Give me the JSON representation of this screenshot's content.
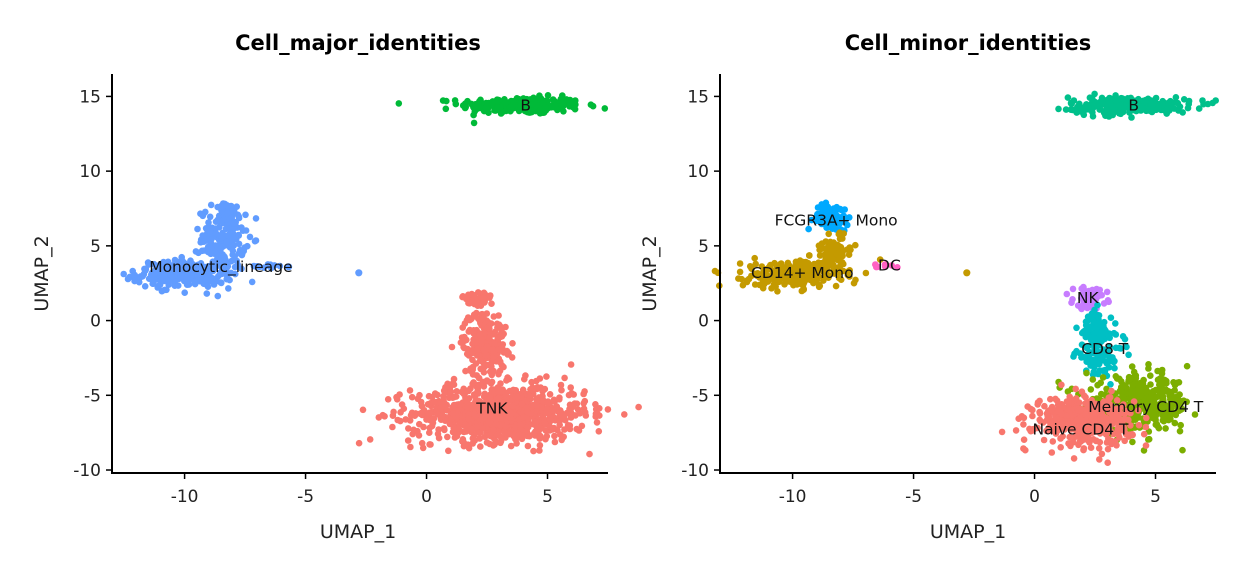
{
  "chart_data": [
    {
      "type": "scatter",
      "title": "Cell_major_identities",
      "xlabel": "UMAP_1",
      "ylabel": "UMAP_2",
      "xlim": [
        -13,
        7.5
      ],
      "ylim": [
        -10.2,
        16.5
      ],
      "xticks": [
        -10,
        -5,
        0,
        5
      ],
      "yticks": [
        -10,
        -5,
        0,
        5,
        10,
        15
      ],
      "legend": "none",
      "grid": false,
      "clusters": [
        {
          "label": "B",
          "color": "#00BA38",
          "label_x": 4.1,
          "label_y": 14.4,
          "blobs": [
            {
              "cx": 3.9,
              "cy": 14.4,
              "sx": 1.25,
              "sy": 0.28,
              "n": 260
            }
          ]
        },
        {
          "label": "Monocytic_lineage",
          "color": "#619CFF",
          "label_x": -8.5,
          "label_y": 3.6,
          "blobs": [
            {
              "cx": -10.0,
              "cy": 3.1,
              "sx": 1.0,
              "sy": 0.45,
              "n": 260
            },
            {
              "cx": -8.4,
              "cy": 5.5,
              "sx": 0.45,
              "sy": 1.0,
              "n": 160
            },
            {
              "cx": -8.3,
              "cy": 7.4,
              "sx": 0.25,
              "sy": 0.3,
              "n": 30
            },
            {
              "cx": -6.6,
              "cy": 3.6,
              "sx": 0.5,
              "sy": 0.1,
              "n": 12
            }
          ],
          "points": [
            [
              -2.8,
              3.2
            ],
            [
              -5.7,
              3.6
            ]
          ]
        },
        {
          "label": "TNK",
          "color": "#F8766D",
          "label_x": 2.7,
          "label_y": -5.9,
          "blobs": [
            {
              "cx": 3.0,
              "cy": -6.2,
              "sx": 1.8,
              "sy": 0.95,
              "n": 900
            },
            {
              "cx": 2.4,
              "cy": -1.5,
              "sx": 0.45,
              "sy": 1.1,
              "n": 220
            },
            {
              "cx": 2.1,
              "cy": 1.4,
              "sx": 0.3,
              "sy": 0.35,
              "n": 40
            }
          ]
        }
      ]
    },
    {
      "type": "scatter",
      "title": "Cell_minor_identities",
      "xlabel": "UMAP_1",
      "ylabel": "UMAP_2",
      "xlim": [
        -13,
        7.5
      ],
      "ylim": [
        -10.2,
        16.5
      ],
      "xticks": [
        -10,
        -5,
        0,
        5
      ],
      "yticks": [
        -10,
        -5,
        0,
        5,
        10,
        15
      ],
      "legend": "none",
      "grid": false,
      "clusters": [
        {
          "label": "B",
          "color": "#00C08B",
          "label_x": 4.1,
          "label_y": 14.4,
          "blobs": [
            {
              "cx": 3.9,
              "cy": 14.4,
              "sx": 1.25,
              "sy": 0.28,
              "n": 260
            }
          ]
        },
        {
          "label": "FCGR3A+ Mono",
          "color": "#00A9FF",
          "label_x": -8.2,
          "label_y": 6.7,
          "blobs": [
            {
              "cx": -8.4,
              "cy": 6.9,
              "sx": 0.35,
              "sy": 0.45,
              "n": 90
            }
          ]
        },
        {
          "label": "CD14+ Mono",
          "color": "#C49A00",
          "label_x": -9.6,
          "label_y": 3.2,
          "blobs": [
            {
              "cx": -10.0,
              "cy": 3.1,
              "sx": 1.0,
              "sy": 0.45,
              "n": 260
            },
            {
              "cx": -8.3,
              "cy": 4.6,
              "sx": 0.4,
              "sy": 0.6,
              "n": 80
            }
          ],
          "points": [
            [
              -2.8,
              3.2
            ]
          ]
        },
        {
          "label": "DC",
          "color": "#FF61C3",
          "label_x": -6.0,
          "label_y": 3.7,
          "blobs": [
            {
              "cx": -6.3,
              "cy": 3.65,
              "sx": 0.35,
              "sy": 0.08,
              "n": 8
            }
          ]
        },
        {
          "label": "NK",
          "color": "#C77CFF",
          "label_x": 2.2,
          "label_y": 1.5,
          "blobs": [
            {
              "cx": 2.3,
              "cy": 1.5,
              "sx": 0.35,
              "sy": 0.35,
              "n": 70
            }
          ]
        },
        {
          "label": "CD8 T",
          "color": "#00BFC4",
          "label_x": 2.9,
          "label_y": -1.9,
          "blobs": [
            {
              "cx": 2.5,
              "cy": -0.5,
              "sx": 0.35,
              "sy": 0.6,
              "n": 80
            },
            {
              "cx": 2.7,
              "cy": -2.4,
              "sx": 0.5,
              "sy": 0.6,
              "n": 90
            }
          ]
        },
        {
          "label": "Memory CD4 T",
          "color": "#7CAE00",
          "label_x": 4.6,
          "label_y": -5.8,
          "blobs": [
            {
              "cx": 4.3,
              "cy": -5.6,
              "sx": 1.1,
              "sy": 0.9,
              "n": 380
            }
          ]
        },
        {
          "label": "Naive CD4 T",
          "color": "#F8766D",
          "label_x": 1.9,
          "label_y": -7.3,
          "blobs": [
            {
              "cx": 2.0,
              "cy": -6.7,
              "sx": 1.0,
              "sy": 0.8,
              "n": 420
            }
          ]
        }
      ]
    }
  ]
}
